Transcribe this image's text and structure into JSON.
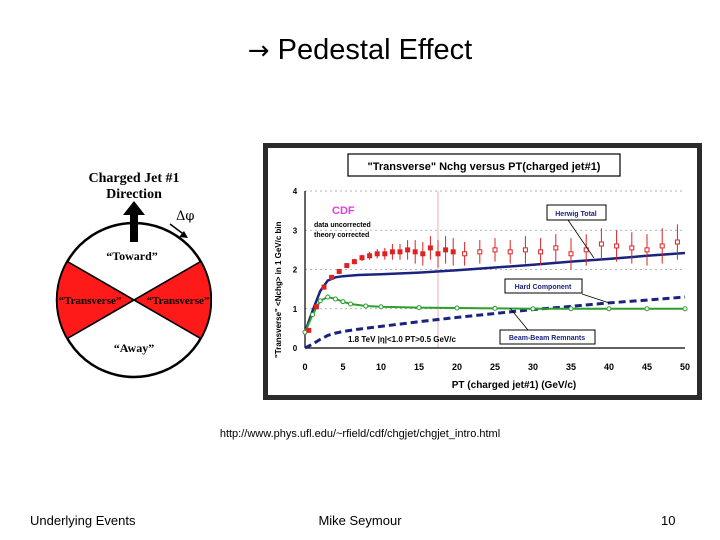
{
  "slide": {
    "arrow": "→",
    "title": "Pedestal Effect",
    "url": "http://www.phys.ufl.edu/~rfield/cdf/chgjet/chgjet_intro.html",
    "footer_left": "Underlying Events",
    "footer_center": "Mike Seymour",
    "page_number": "10"
  },
  "diagram": {
    "heading_line1": "Charged Jet #1",
    "heading_line2": "Direction",
    "delta_phi": "Δφ",
    "toward": "“Toward”",
    "transverse_left": "“Transverse”",
    "transverse_right": "“Transverse”",
    "away": "“Away”",
    "colors": {
      "transverse": "#ff1a1a",
      "outline": "#000000"
    }
  },
  "chart_data": {
    "type": "scatter",
    "title": "\"Transverse\" Nchg versus PT(charged jet#1)",
    "xlabel": "PT (charged jet#1)  (GeV/c)",
    "ylabel": "\"Transverse\" <Nchg> in 1 GeV/c bin",
    "xlim": [
      0,
      50
    ],
    "ylim": [
      0,
      4
    ],
    "xticks": [
      0,
      5,
      10,
      15,
      20,
      25,
      30,
      35,
      40,
      45,
      50
    ],
    "yticks": [
      0,
      1,
      2,
      3,
      4
    ],
    "grid": "horizontal dashed",
    "annotations": {
      "cdf": "CDF",
      "data_note1": "data uncorrected",
      "data_note2": "theory corrected",
      "energy_note": "1.8 TeV |η|<1.0 PT>0.5 GeV/c",
      "herwig_label": "Herwig Total",
      "hard_label": "Hard Component",
      "beam_label": "Beam-Beam Remnants"
    },
    "colors": {
      "data": "#dd2222",
      "herwig": "#1a237e",
      "hard": "#1a237e",
      "beam": "#2e9e2e",
      "cdf": "#e040e0"
    },
    "series": [
      {
        "name": "CDF data",
        "x": [
          0.5,
          1.5,
          2.5,
          3.5,
          4.5,
          5.5,
          6.5,
          7.5,
          8.5,
          9.5,
          10.5,
          11.5,
          12.5,
          13.5,
          14.5,
          15.5,
          16.5,
          17.5,
          18.5,
          19.5,
          21,
          23,
          25,
          27,
          29,
          31,
          33,
          35,
          37,
          39,
          41,
          43,
          45,
          47,
          49
        ],
        "y": [
          0.45,
          1.05,
          1.55,
          1.8,
          1.95,
          2.1,
          2.2,
          2.3,
          2.35,
          2.4,
          2.4,
          2.45,
          2.45,
          2.5,
          2.45,
          2.4,
          2.55,
          2.4,
          2.5,
          2.45,
          2.4,
          2.45,
          2.5,
          2.45,
          2.5,
          2.45,
          2.55,
          2.4,
          2.5,
          2.65,
          2.6,
          2.55,
          2.5,
          2.6,
          2.7
        ],
        "err": [
          0.05,
          0.05,
          0.05,
          0.05,
          0.05,
          0.06,
          0.07,
          0.08,
          0.1,
          0.12,
          0.15,
          0.2,
          0.2,
          0.25,
          0.3,
          0.3,
          0.3,
          0.35,
          0.35,
          0.35,
          0.3,
          0.3,
          0.3,
          0.3,
          0.35,
          0.35,
          0.35,
          0.4,
          0.4,
          0.4,
          0.4,
          0.4,
          0.4,
          0.45,
          0.45
        ]
      },
      {
        "name": "Herwig Total",
        "x": [
          0,
          1,
          2,
          3,
          4,
          5,
          7,
          10,
          15,
          20,
          25,
          30,
          35,
          40,
          45,
          50
        ],
        "y": [
          0.4,
          0.95,
          1.45,
          1.72,
          1.8,
          1.83,
          1.86,
          1.88,
          1.92,
          1.98,
          2.05,
          2.12,
          2.2,
          2.27,
          2.35,
          2.42
        ]
      },
      {
        "name": "Hard Component",
        "x": [
          0,
          1,
          2,
          3,
          4,
          5,
          7,
          10,
          15,
          20,
          25,
          30,
          35,
          40,
          45,
          50
        ],
        "y": [
          0.0,
          0.1,
          0.22,
          0.32,
          0.38,
          0.42,
          0.48,
          0.55,
          0.67,
          0.78,
          0.88,
          0.98,
          1.06,
          1.15,
          1.22,
          1.3
        ]
      },
      {
        "name": "Beam-Beam Remnants",
        "x": [
          0,
          1,
          2,
          3,
          4,
          5,
          6,
          8,
          10,
          15,
          20,
          25,
          30,
          35,
          40,
          45,
          50
        ],
        "y": [
          0.4,
          0.85,
          1.2,
          1.3,
          1.25,
          1.18,
          1.12,
          1.07,
          1.05,
          1.03,
          1.02,
          1.01,
          1.0,
          1.0,
          1.0,
          1.0,
          1.0
        ]
      }
    ]
  }
}
